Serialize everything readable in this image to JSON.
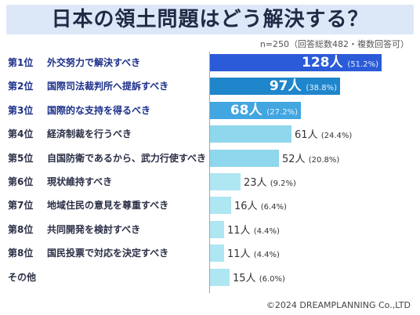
{
  "title": "日本の領土問題はどう解決する？",
  "note": "n=250（回答総数482・複数回答可）",
  "copyright": "©2024 DREAMPLANNING Co.,LTD",
  "colors": {
    "top1": "#2b5bd8",
    "top2": "#1f86cc",
    "top3": "#42a6e0",
    "mid": "#8fd7ec",
    "low": "#aee6f2",
    "title_band": "#dce8f8"
  },
  "chart_data": {
    "type": "bar",
    "orientation": "horizontal",
    "title": "日本の領土問題はどう解決する？",
    "n": 250,
    "total_answers": 482,
    "unit": "人",
    "categories": [
      "外交努力で解決すべき",
      "国際司法裁判所へ提訴すべき",
      "国際的な支持を得るべき",
      "経済制裁を行うべき",
      "自国防衛であるから、武力行使すべき",
      "現状維持すべき",
      "地域住民の意見を尊重すべき",
      "共同開発を検討すべき",
      "国民投票で対応を決定すべき",
      "その他"
    ],
    "ranks": [
      "第1位",
      "第2位",
      "第3位",
      "第4位",
      "第5位",
      "第6位",
      "第7位",
      "第8位",
      "第8位",
      ""
    ],
    "values": [
      128,
      97,
      68,
      61,
      52,
      23,
      16,
      11,
      11,
      15
    ],
    "percents": [
      "(51.2%)",
      "(38.8%)",
      "(27.2%)",
      "(24.4%)",
      "(20.8%)",
      "(9.2%)",
      "(6.4%)",
      "(4.4%)",
      "(4.4%)",
      "(6.0%)"
    ],
    "xlim": [
      0,
      140
    ]
  }
}
